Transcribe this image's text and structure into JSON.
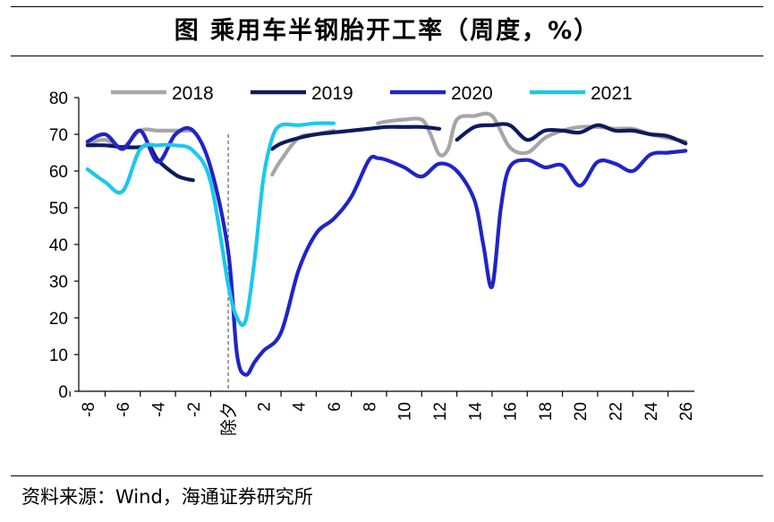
{
  "header": {
    "title": "图 乘用车半钢胎开工率（周度，%）"
  },
  "footer": {
    "source": "资料来源：Wind，海通证券研究所"
  },
  "chart_data": {
    "type": "line",
    "title": "图 乘用车半钢胎开工率（周度，%）",
    "xlabel": "",
    "ylabel": "",
    "xlim": [
      -8.5,
      26.5
    ],
    "ylim": [
      0,
      80
    ],
    "yticks": [
      0,
      10,
      20,
      30,
      40,
      50,
      60,
      70,
      80
    ],
    "xticks": [
      -8,
      -6,
      -4,
      -2,
      0,
      2,
      4,
      6,
      8,
      10,
      12,
      14,
      16,
      18,
      20,
      22,
      24,
      26
    ],
    "xtick_labels": [
      "-8",
      "-6",
      "-4",
      "-2",
      "除夕",
      "2",
      "4",
      "6",
      "8",
      "10",
      "12",
      "14",
      "16",
      "18",
      "20",
      "22",
      "24",
      "26"
    ],
    "reference_line": {
      "x": 0,
      "label": "除夕",
      "style": "dashed"
    },
    "grid": false,
    "legend_position": "top",
    "series": [
      {
        "name": "2018",
        "color": "#a6a6a6",
        "segments": [
          {
            "x": [
              -8,
              -7,
              -6,
              -5,
              -4,
              -3,
              -2
            ],
            "y": [
              67.5,
              68.5,
              66.5,
              71,
              71,
              71,
              71
            ]
          },
          {
            "x": [
              2.5,
              3,
              4,
              5,
              6
            ],
            "y": [
              59,
              63,
              69,
              70,
              71
            ]
          },
          {
            "x": [
              8.5,
              9,
              10,
              11,
              11.5,
              12,
              12.5,
              13,
              14,
              15,
              16,
              17,
              18,
              19,
              20,
              21,
              22,
              23,
              24,
              25,
              26
            ],
            "y": [
              73,
              73.5,
              74,
              74,
              70,
              64.5,
              66,
              74,
              75,
              75,
              66.5,
              65,
              69,
              71,
              72,
              72,
              71.5,
              71.5,
              70,
              69,
              68
            ]
          }
        ]
      },
      {
        "name": "2019",
        "color": "#0d1a5e",
        "segments": [
          {
            "x": [
              -8,
              -7,
              -6,
              -5,
              -4.5,
              -4,
              -3,
              -2.5,
              -2
            ],
            "y": [
              67,
              67,
              66.5,
              66.5,
              67,
              63,
              59,
              58,
              57.5
            ]
          },
          {
            "x": [
              2.5,
              3,
              4,
              5,
              6,
              7,
              8,
              9,
              10,
              11,
              12
            ],
            "y": [
              66,
              67.5,
              69,
              70,
              70.5,
              71,
              71.5,
              72,
              72,
              72,
              71.5
            ]
          },
          {
            "x": [
              13,
              14,
              15,
              16,
              17,
              18,
              19,
              20,
              21,
              22,
              23,
              24,
              25,
              26
            ],
            "y": [
              68.5,
              72,
              72.5,
              72.5,
              68.5,
              71,
              71,
              70.5,
              72.5,
              71,
              71,
              70,
              69.5,
              67.5
            ]
          }
        ]
      },
      {
        "name": "2020",
        "color": "#1f24c9",
        "segments": [
          {
            "x": [
              -8,
              -7,
              -6,
              -5,
              -4,
              -3,
              -2,
              -1,
              0,
              0.5,
              1,
              1.5,
              2,
              3,
              4,
              5,
              6,
              7,
              8,
              8.5,
              9,
              10,
              11,
              12,
              13,
              14,
              14.5,
              15,
              15.5,
              16,
              17,
              18,
              19,
              20,
              21,
              22,
              23,
              24,
              25,
              26
            ],
            "y": [
              68,
              70,
              66,
              71,
              62.5,
              70,
              71,
              61,
              38,
              10,
              4.5,
              8,
              11,
              16,
              33,
              43,
              47,
              53,
              63,
              63.5,
              63,
              61,
              58.5,
              62,
              60,
              52,
              40,
              28.5,
              50,
              61,
              63,
              61,
              61.5,
              56,
              62.5,
              62,
              60,
              64.5,
              65,
              65.5
            ]
          }
        ]
      },
      {
        "name": "2021",
        "color": "#1bc8ec",
        "segments": [
          {
            "x": [
              -8,
              -7,
              -6,
              -5,
              -4,
              -3,
              -2,
              -1,
              0,
              0.5,
              1,
              1.5,
              2,
              2.5,
              3,
              4,
              5,
              6
            ],
            "y": [
              60.5,
              57,
              54.5,
              66,
              67,
              67,
              65.5,
              57,
              29,
              20,
              19.5,
              36,
              58,
              69,
              72.5,
              72.5,
              73,
              73
            ]
          }
        ]
      }
    ]
  }
}
